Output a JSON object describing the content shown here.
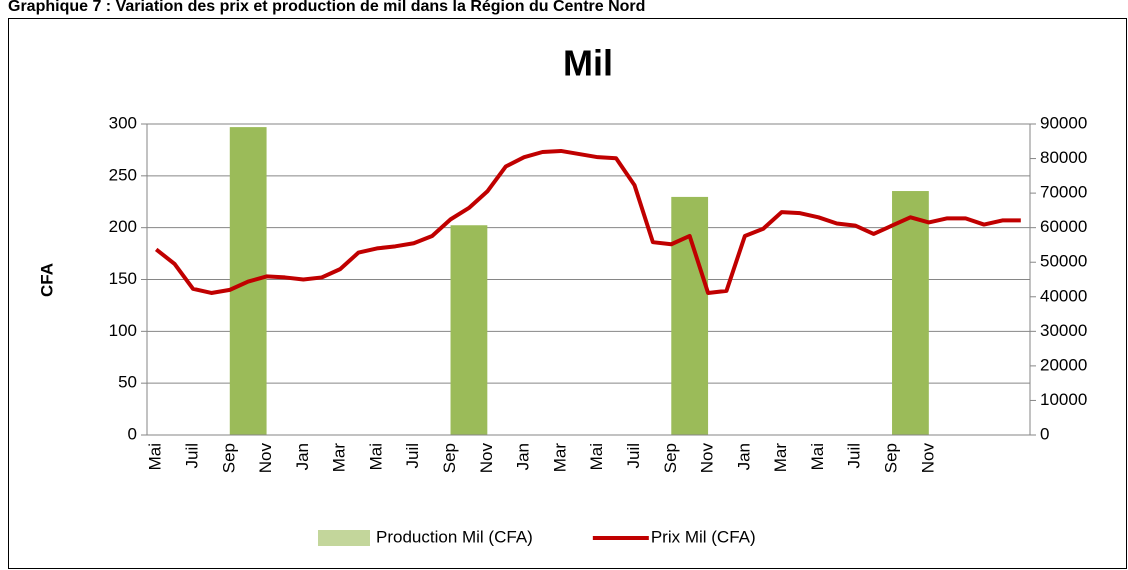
{
  "header": "Graphique 7 : Variation des prix et production de mil dans la Région du Centre Nord",
  "chart_data": {
    "type": "bar-line",
    "title": "Mil",
    "ylabel": "CFA",
    "categories": [
      "Mai",
      null,
      "Juil",
      null,
      "Sep",
      null,
      "Nov",
      null,
      "Jan",
      null,
      "Mar",
      null,
      "Mai",
      null,
      "Juil",
      null,
      "Sep",
      null,
      "Nov",
      null,
      "Jan",
      null,
      "Mar",
      null,
      "Mai",
      null,
      "Juil",
      null,
      "Sep",
      null,
      "Nov",
      null,
      "Jan",
      null,
      "Mar",
      null,
      "Mai",
      null,
      "Juil",
      null,
      "Sep",
      null,
      "Nov",
      null,
      null,
      null,
      null,
      null
    ],
    "series": [
      {
        "name": "Production Mil (CFA)",
        "type": "bar",
        "axis": "y2",
        "color": "#9bbb59",
        "values": [
          null,
          null,
          null,
          null,
          null,
          89100,
          null,
          null,
          null,
          null,
          null,
          null,
          null,
          null,
          null,
          null,
          null,
          60700,
          null,
          null,
          null,
          null,
          null,
          null,
          null,
          null,
          null,
          null,
          null,
          68900,
          null,
          null,
          null,
          null,
          null,
          null,
          null,
          null,
          null,
          null,
          null,
          70600,
          null,
          null,
          null,
          null,
          null,
          null
        ]
      },
      {
        "name": "Prix Mil (CFA)",
        "type": "line",
        "axis": "y",
        "color": "#c00000",
        "values": [
          179,
          165,
          141,
          137,
          140,
          148,
          153,
          152,
          150,
          152,
          160,
          176,
          180,
          182,
          185,
          192,
          208,
          219,
          235,
          259,
          268,
          273,
          274,
          271,
          268,
          267,
          241,
          186,
          184,
          192,
          137,
          139,
          192,
          199,
          215,
          214,
          210,
          204,
          202,
          194,
          202,
          210,
          205,
          209,
          209,
          203,
          207,
          207
        ]
      }
    ],
    "ylim": [
      0,
      300
    ],
    "yticks": [
      0,
      50,
      100,
      150,
      200,
      250,
      300
    ],
    "y2lim": [
      0,
      90000
    ],
    "y2ticks": [
      0,
      10000,
      20000,
      30000,
      40000,
      50000,
      60000,
      70000,
      80000,
      90000
    ],
    "grid": true,
    "legend": "bottom"
  }
}
